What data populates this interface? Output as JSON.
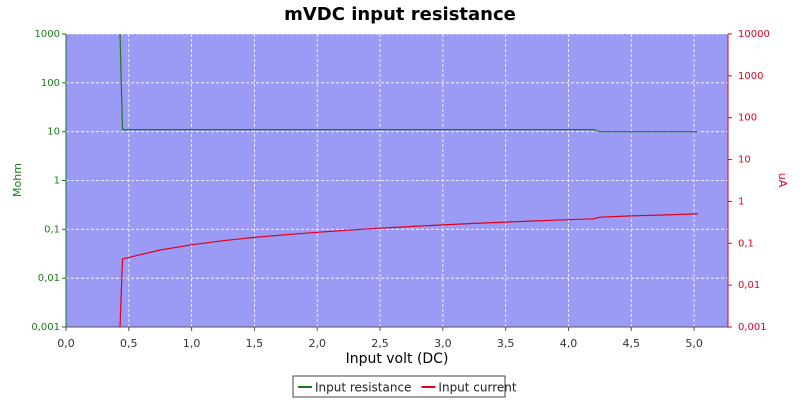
{
  "chart_data": {
    "type": "line",
    "title": "mVDC input resistance",
    "xlabel": "Input volt (DC)",
    "ylabel": "Mohm",
    "y2label": "uA",
    "log_y": true,
    "log_y2": true,
    "grid": true,
    "legend": "bottom",
    "x": [
      0.43,
      0.45,
      0.5,
      0.75,
      1.0,
      1.25,
      1.5,
      1.75,
      2.0,
      2.25,
      2.5,
      2.75,
      3.0,
      3.25,
      3.5,
      3.75,
      4.0,
      4.2,
      4.25,
      4.5,
      4.75,
      5.03
    ],
    "series": [
      {
        "name": "Input resistance",
        "color": "#1a7a1a",
        "axis": "y",
        "values": [
          1000,
          11,
          11,
          11,
          11,
          11,
          11,
          11,
          11,
          11,
          11,
          11,
          11,
          11,
          11,
          11,
          11,
          11,
          10,
          10,
          10,
          10
        ]
      },
      {
        "name": "Input current",
        "color": "#e0001e",
        "axis": "y2",
        "values": [
          0.001,
          0.042,
          0.046,
          0.069,
          0.092,
          0.115,
          0.138,
          0.16,
          0.183,
          0.206,
          0.229,
          0.252,
          0.275,
          0.298,
          0.32,
          0.343,
          0.366,
          0.385,
          0.42,
          0.45,
          0.475,
          0.503
        ]
      }
    ],
    "xlim": [
      0,
      5.27
    ],
    "xticks": [
      {
        "value": 0,
        "label": "0,0"
      },
      {
        "value": 0.5,
        "label": "0,5"
      },
      {
        "value": 1,
        "label": "1,0"
      },
      {
        "value": 1.5,
        "label": "1,5"
      },
      {
        "value": 2,
        "label": "2,0"
      },
      {
        "value": 2.5,
        "label": "2,5"
      },
      {
        "value": 3,
        "label": "3,0"
      },
      {
        "value": 3.5,
        "label": "3,5"
      },
      {
        "value": 4,
        "label": "4,0"
      },
      {
        "value": 4.5,
        "label": "4,5"
      },
      {
        "value": 5,
        "label": "5,0"
      }
    ],
    "ylim": [
      0.001,
      1000
    ],
    "yticks": [
      {
        "value": 0.001,
        "label": "0,001"
      },
      {
        "value": 0.01,
        "label": "0,01"
      },
      {
        "value": 0.1,
        "label": "0,1"
      },
      1,
      10,
      100,
      1000
    ],
    "y2lim": [
      0.001,
      10000
    ],
    "y2ticks": [
      {
        "value": 0.001,
        "label": "0,001"
      },
      {
        "value": 0.01,
        "label": "0,01"
      },
      {
        "value": 0.1,
        "label": "0,1"
      },
      1,
      10,
      100,
      1000,
      10000
    ]
  }
}
